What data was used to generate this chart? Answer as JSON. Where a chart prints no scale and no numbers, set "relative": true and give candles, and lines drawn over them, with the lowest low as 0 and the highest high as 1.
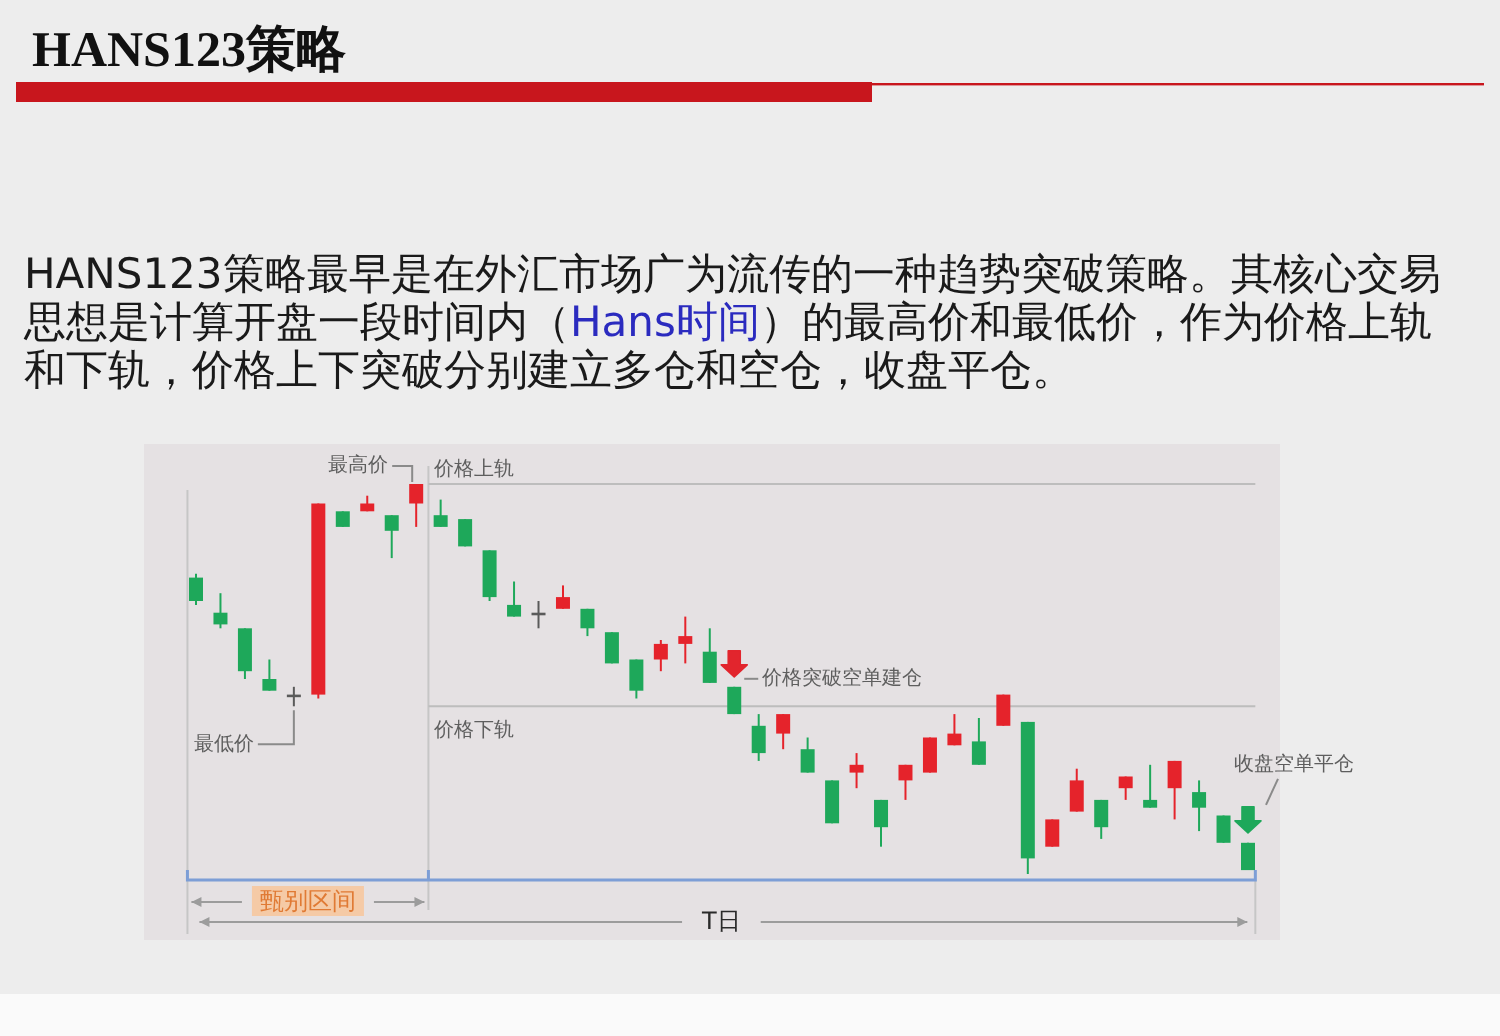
{
  "chart_data": {
    "type": "candlestick",
    "title": "HANS123策略",
    "subtitle": "HANS123策略最早是在外汇市场广为流传的一种趋势突破策略。其核心交易思想是计算开盘一段时间内（Hans时间）的最高价和最低价，作为价格上轨和下轨，价格上下突破分别建立多仓和空仓，收盘平仓。",
    "relative": true,
    "categories": [
      null,
      null,
      null,
      null,
      null,
      null,
      null,
      null,
      null,
      null,
      null,
      null,
      null,
      null,
      null,
      null,
      null,
      null,
      null,
      null,
      null,
      null,
      null,
      null,
      null,
      null,
      null,
      null,
      null,
      null,
      null,
      null,
      null,
      null,
      null,
      null,
      null,
      null,
      null,
      null,
      null,
      null,
      null,
      null
    ],
    "ohlc": [
      [
        0.76,
        0.77,
        0.69,
        0.7
      ],
      [
        0.67,
        0.72,
        0.63,
        0.64
      ],
      [
        0.63,
        0.63,
        0.5,
        0.52
      ],
      [
        0.5,
        0.55,
        0.47,
        0.47
      ],
      [
        0.46,
        0.48,
        0.43,
        0.46
      ],
      [
        0.46,
        0.95,
        0.45,
        0.95
      ],
      [
        0.93,
        0.93,
        0.89,
        0.89
      ],
      [
        0.93,
        0.97,
        0.93,
        0.95
      ],
      [
        0.92,
        0.92,
        0.81,
        0.88
      ],
      [
        0.95,
        1,
        0.89,
        1
      ],
      [
        0.92,
        0.96,
        0.89,
        0.89
      ],
      [
        0.91,
        0.91,
        0.84,
        0.84
      ],
      [
        0.83,
        0.83,
        0.7,
        0.71
      ],
      [
        0.69,
        0.75,
        0.66,
        0.66
      ],
      [
        0.67,
        0.7,
        0.63,
        0.67
      ],
      [
        0.68,
        0.74,
        0.68,
        0.71
      ],
      [
        0.68,
        0.68,
        0.61,
        0.63
      ],
      [
        0.62,
        0.62,
        0.54,
        0.54
      ],
      [
        0.55,
        0.55,
        0.45,
        0.47
      ],
      [
        0.55,
        0.6,
        0.52,
        0.59
      ],
      [
        0.59,
        0.66,
        0.54,
        0.61
      ],
      [
        0.57,
        0.63,
        0.49,
        0.49
      ],
      [
        0.48,
        0.48,
        0.41,
        0.41
      ],
      [
        0.38,
        0.41,
        0.29,
        0.31
      ],
      [
        0.36,
        0.41,
        0.32,
        0.41
      ],
      [
        0.32,
        0.35,
        0.26,
        0.26
      ],
      [
        0.24,
        0.24,
        0.13,
        0.13
      ],
      [
        0.26,
        0.31,
        0.22,
        0.28
      ],
      [
        0.19,
        0.19,
        0.07,
        0.12
      ],
      [
        0.24,
        0.28,
        0.19,
        0.28
      ],
      [
        0.26,
        0.35,
        0.26,
        0.35
      ],
      [
        0.33,
        0.41,
        0.33,
        0.36
      ],
      [
        0.34,
        0.4,
        0.28,
        0.28
      ],
      [
        0.38,
        0.46,
        0.38,
        0.46
      ],
      [
        0.39,
        0.39,
        0,
        0.04
      ],
      [
        0.07,
        0.14,
        0.07,
        0.14
      ],
      [
        0.16,
        0.27,
        0.16,
        0.24
      ],
      [
        0.19,
        0.19,
        0.09,
        0.12
      ],
      [
        0.22,
        0.25,
        0.19,
        0.25
      ],
      [
        0.19,
        0.28,
        0.17,
        0.17
      ],
      [
        0.22,
        0.29,
        0.14,
        0.29
      ],
      [
        0.21,
        0.24,
        0.11,
        0.17
      ],
      [
        0.15,
        0.15,
        0.08,
        0.08
      ],
      [
        0.08,
        0.08,
        0.01,
        0.01
      ]
    ],
    "colors": [
      "#1ea85a",
      "#1ea85a",
      "#1ea85a",
      "#1ea85a",
      "#5a5a5a",
      "#e5232b",
      "#1ea85a",
      "#e5232b",
      "#1ea85a",
      "#e5232b",
      "#1ea85a",
      "#1ea85a",
      "#1ea85a",
      "#1ea85a",
      "#5a5a5a",
      "#e5232b",
      "#1ea85a",
      "#1ea85a",
      "#1ea85a",
      "#e5232b",
      "#e5232b",
      "#1ea85a",
      "#1ea85a",
      "#1ea85a",
      "#e5232b",
      "#1ea85a",
      "#1ea85a",
      "#e5232b",
      "#1ea85a",
      "#e5232b",
      "#e5232b",
      "#e5232b",
      "#1ea85a",
      "#e5232b",
      "#1ea85a",
      "#e5232b",
      "#e5232b",
      "#1ea85a",
      "#e5232b",
      "#1ea85a",
      "#e5232b",
      "#1ea85a",
      "#1ea85a",
      "#1ea85a"
    ],
    "ref_lines": [
      {
        "axis": "y",
        "value": 1,
        "label": "价格上轨",
        "color": "#bdbdbd"
      },
      {
        "axis": "y",
        "value": 0.43,
        "label": "价格下轨",
        "color": "#bdbdbd"
      }
    ],
    "annotations": [
      "最高价",
      "最低价",
      "价格突破空单建仓",
      "收盘空单平仓",
      "甄别区间",
      "T日"
    ]
  }
}
